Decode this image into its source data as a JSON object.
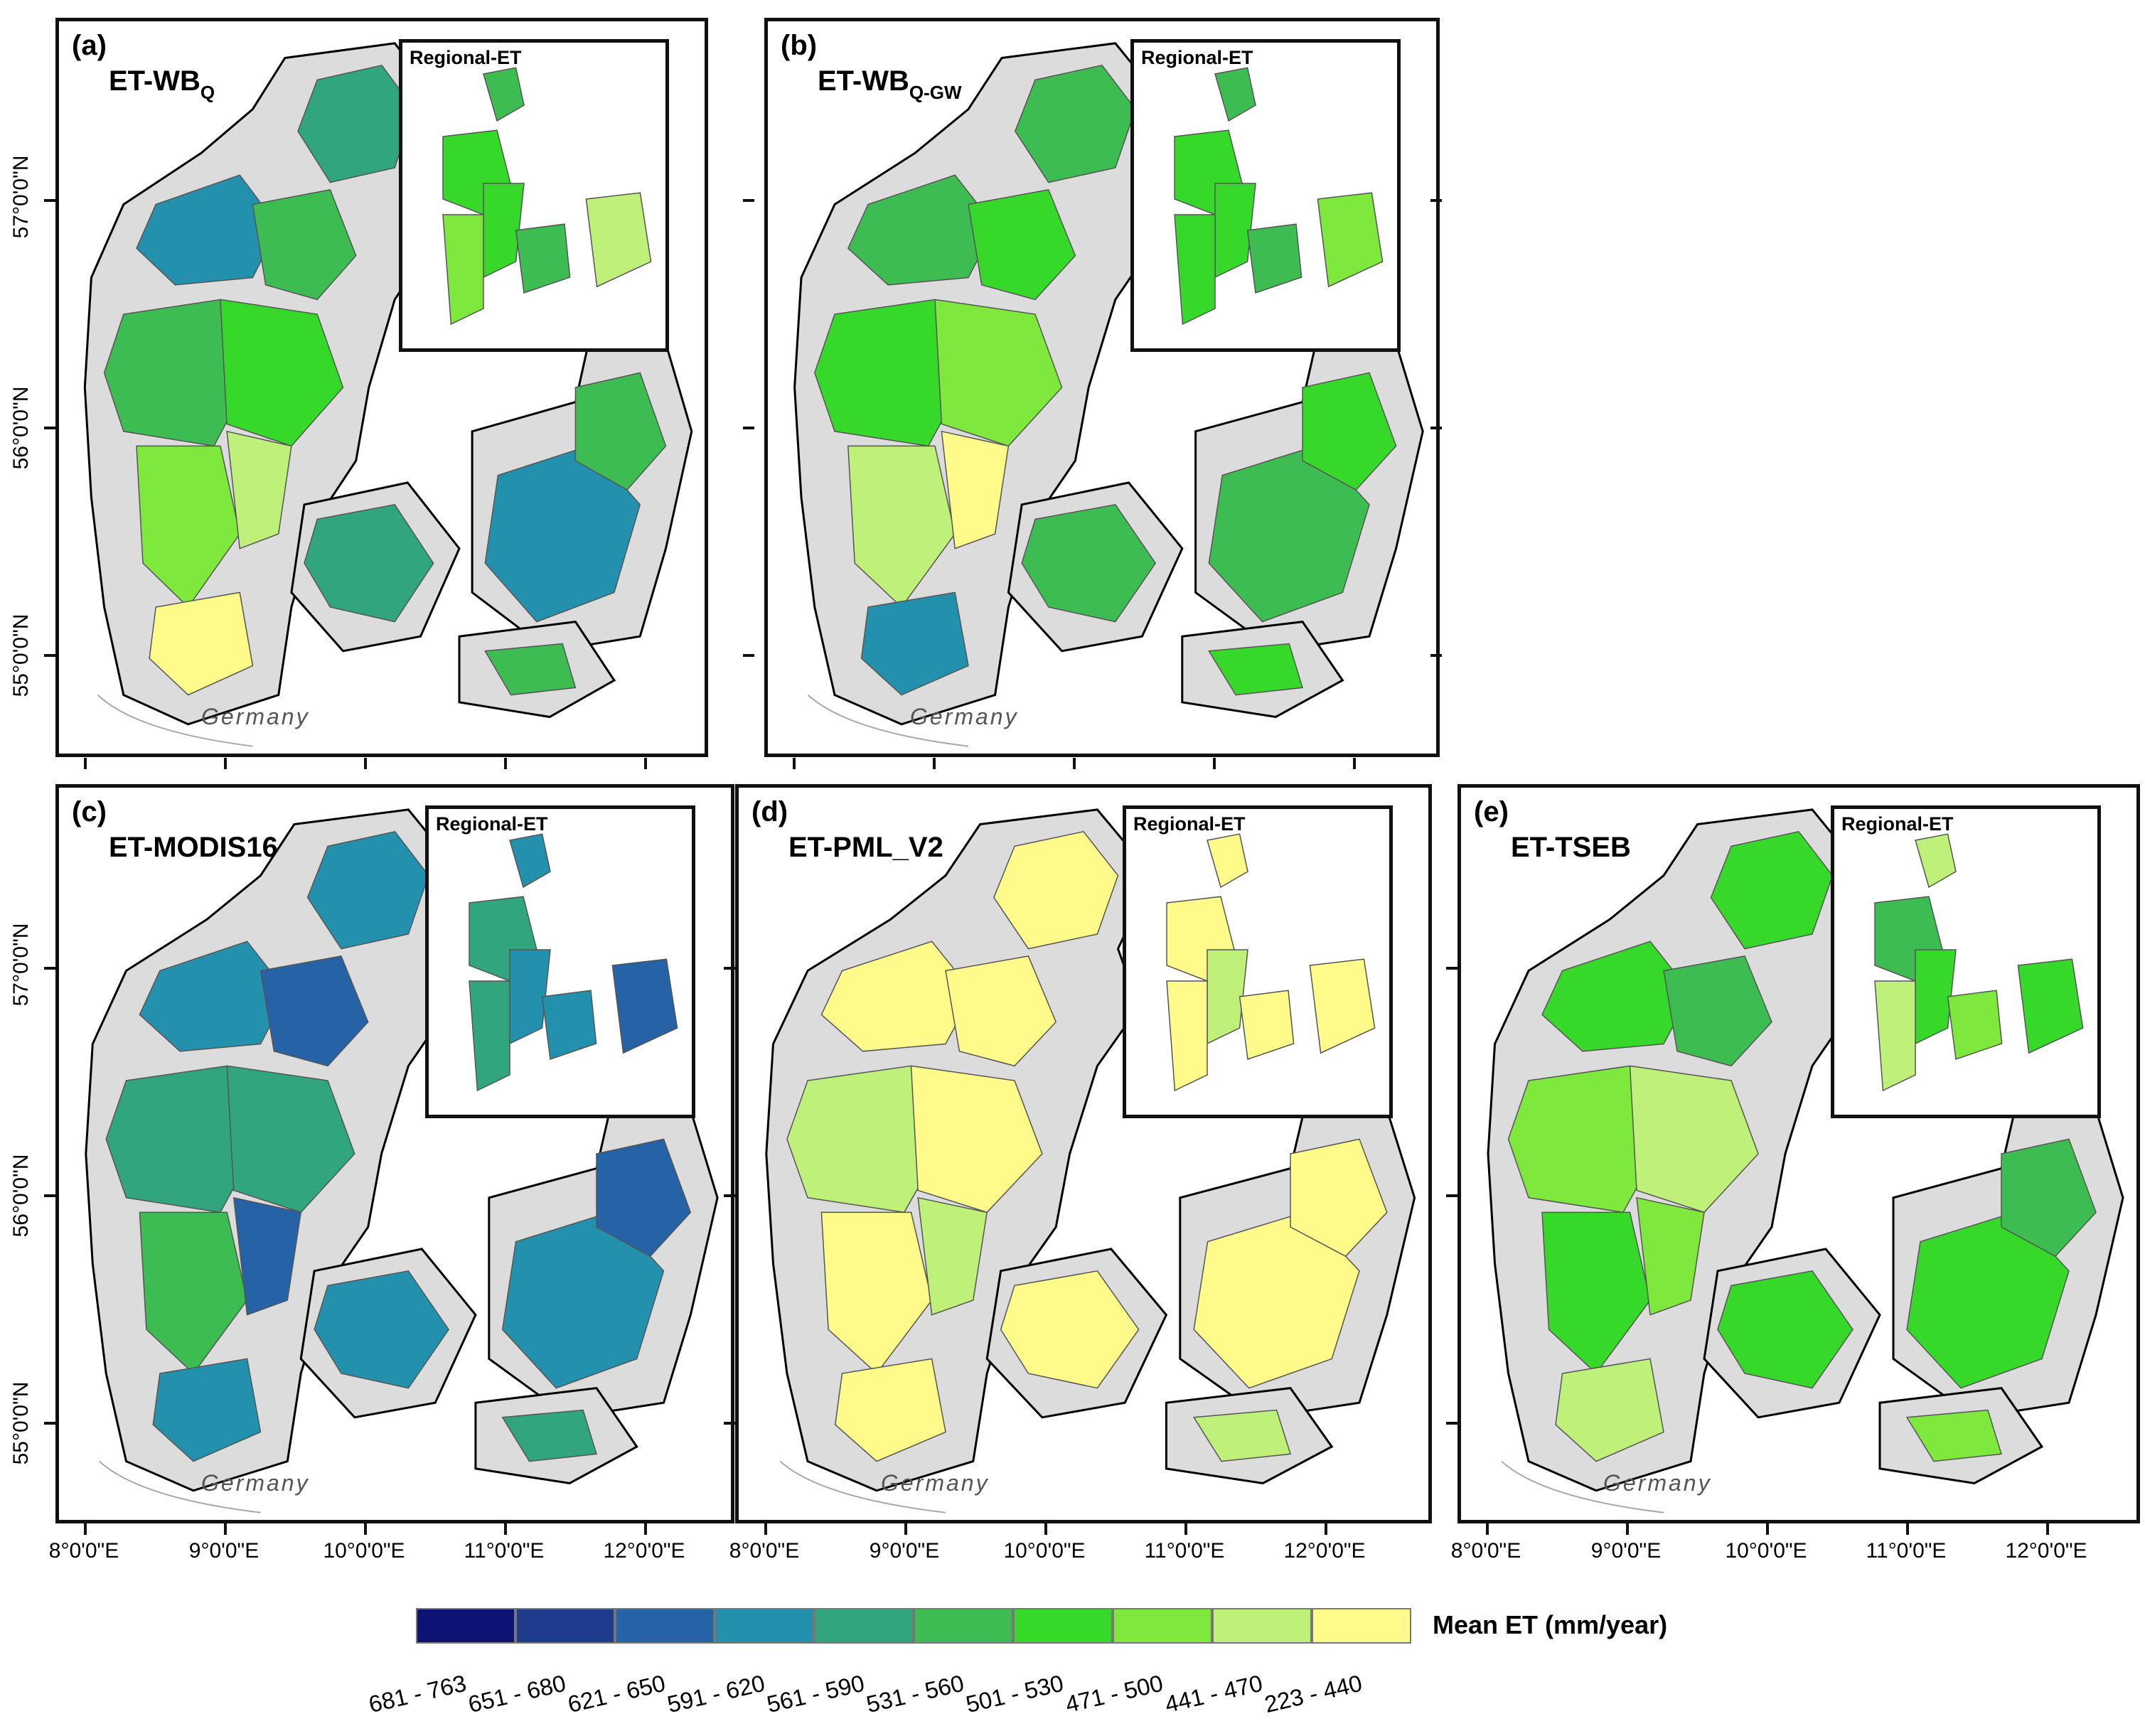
{
  "panels": [
    {
      "label": "(a)",
      "title": "ET-WB",
      "subscript": "Q",
      "inset_title": "Regional-ET",
      "country_label": "Germany",
      "palette": [
        4,
        3,
        5,
        5,
        6,
        7,
        8,
        9
      ],
      "inset_palette": [
        5,
        6,
        6,
        7,
        5,
        8
      ]
    },
    {
      "label": "(b)",
      "title": "ET-WB",
      "subscript": "Q-GW",
      "inset_title": "Regional-ET",
      "country_label": "Germany",
      "palette": [
        5,
        5,
        6,
        6,
        7,
        8,
        9,
        3
      ],
      "inset_palette": [
        5,
        6,
        6,
        6,
        5,
        7
      ]
    },
    {
      "label": "(c)",
      "title": "ET-MODIS16",
      "subscript": "",
      "inset_title": "Regional-ET",
      "country_label": "Germany",
      "palette": [
        3,
        3,
        2,
        4,
        4,
        5,
        2,
        3
      ],
      "inset_palette": [
        3,
        4,
        3,
        4,
        3,
        2
      ]
    },
    {
      "label": "(d)",
      "title": "ET-PML_V2",
      "subscript": "",
      "inset_title": "Regional-ET",
      "country_label": "Germany",
      "palette": [
        9,
        9,
        9,
        8,
        9,
        9,
        8,
        9
      ],
      "inset_palette": [
        9,
        9,
        8,
        9,
        9,
        9
      ]
    },
    {
      "label": "(e)",
      "title": "ET-TSEB",
      "subscript": "",
      "inset_title": "Regional-ET",
      "country_label": "Germany",
      "palette": [
        6,
        6,
        5,
        7,
        8,
        6,
        7,
        8
      ],
      "inset_palette": [
        8,
        5,
        6,
        8,
        7,
        6
      ]
    }
  ],
  "lat_labels": [
    "57°0'0\"N",
    "56°0'0\"N",
    "55°0'0\"N"
  ],
  "lon_labels": [
    "8°0'0\"E",
    "9°0'0\"E",
    "10°0'0\"E",
    "11°0'0\"E",
    "12°0'0\"E"
  ],
  "legend": {
    "title": "Mean ET (mm/year)",
    "classes": [
      {
        "range": "681 - 763",
        "color": "#0d1275"
      },
      {
        "range": "651 - 680",
        "color": "#1e3b8e"
      },
      {
        "range": "621 - 650",
        "color": "#2562a6"
      },
      {
        "range": "591 - 620",
        "color": "#2391ad"
      },
      {
        "range": "561 - 590",
        "color": "#30a57e"
      },
      {
        "range": "531 - 560",
        "color": "#3cbc51"
      },
      {
        "range": "501 - 530",
        "color": "#36d82a"
      },
      {
        "range": "471 - 500",
        "color": "#7ee83c"
      },
      {
        "range": "441 - 470",
        "color": "#bff07a"
      },
      {
        "range": "223 - 440",
        "color": "#fffb8a"
      }
    ]
  },
  "land_color": "#dcdcdc"
}
